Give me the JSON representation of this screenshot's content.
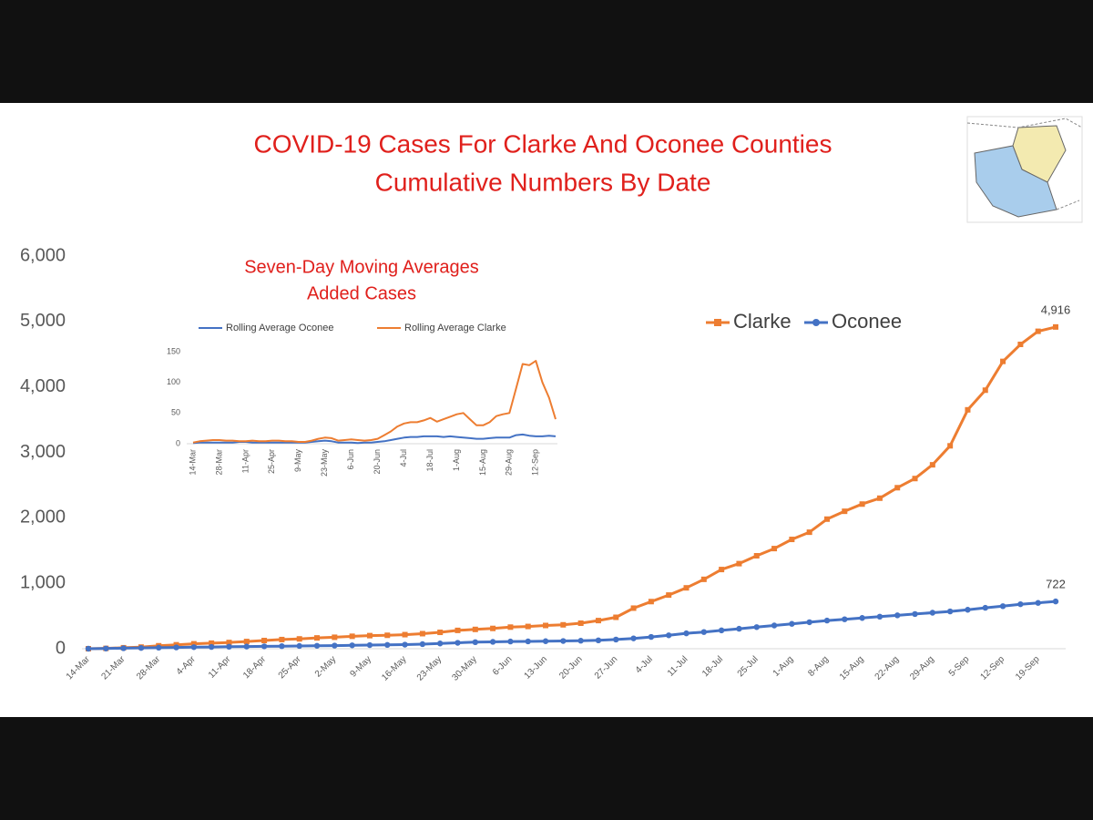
{
  "title": [
    "COVID-19 Cases For Clarke And Oconee Counties",
    "Cumulative Numbers By Date"
  ],
  "chart_data": [
    {
      "type": "line",
      "categories": [
        "14-Mar",
        null,
        "21-Mar",
        null,
        "28-Mar",
        null,
        "4-Apr",
        null,
        "11-Apr",
        null,
        "18-Apr",
        null,
        "25-Apr",
        null,
        "2-May",
        null,
        "9-May",
        null,
        "16-May",
        null,
        "23-May",
        null,
        "30-May",
        null,
        "6-Jun",
        null,
        "13-Jun",
        null,
        "20-Jun",
        null,
        "27-Jun",
        null,
        "4-Jul",
        null,
        "11-Jul",
        null,
        "18-Jul",
        null,
        "25-Jul",
        null,
        "1-Aug",
        null,
        "8-Aug",
        null,
        "15-Aug",
        null,
        "22-Aug",
        null,
        "29-Aug",
        null,
        "5-Sep",
        null,
        "12-Sep",
        null,
        "19-Sep",
        null
      ],
      "series": [
        {
          "name": "Clarke",
          "color": "#ed7d31",
          "marker": "square",
          "values": [
            0,
            5,
            15,
            25,
            45,
            60,
            75,
            85,
            95,
            110,
            125,
            140,
            150,
            165,
            175,
            190,
            200,
            205,
            215,
            230,
            250,
            280,
            295,
            310,
            330,
            340,
            355,
            365,
            390,
            430,
            480,
            620,
            720,
            820,
            930,
            1060,
            1210,
            1300,
            1420,
            1530,
            1670,
            1780,
            1980,
            2100,
            2210,
            2300,
            2460,
            2600,
            2810,
            3100,
            3650,
            3950,
            4390,
            4650,
            4850,
            4916
          ],
          "value_labels": [
            null,
            null,
            null,
            null,
            null,
            null,
            null,
            null,
            null,
            null,
            null,
            null,
            null,
            null,
            null,
            null,
            null,
            null,
            null,
            null,
            null,
            null,
            null,
            null,
            null,
            null,
            null,
            null,
            null,
            null,
            null,
            null,
            null,
            null,
            null,
            null,
            null,
            null,
            null,
            null,
            null,
            null,
            null,
            null,
            null,
            null,
            null,
            null,
            null,
            null,
            null,
            null,
            null,
            null,
            null,
            "4,916"
          ]
        },
        {
          "name": "Oconee",
          "color": "#4472c4",
          "marker": "circle",
          "values": [
            0,
            3,
            8,
            12,
            16,
            20,
            24,
            27,
            30,
            33,
            36,
            39,
            42,
            45,
            48,
            52,
            55,
            58,
            62,
            70,
            80,
            90,
            100,
            105,
            110,
            112,
            115,
            118,
            122,
            128,
            140,
            158,
            180,
            205,
            235,
            255,
            280,
            305,
            330,
            355,
            380,
            405,
            430,
            450,
            470,
            490,
            510,
            530,
            550,
            570,
            595,
            625,
            650,
            680,
            700,
            722
          ],
          "value_labels": [
            null,
            null,
            null,
            null,
            null,
            null,
            null,
            null,
            null,
            null,
            null,
            null,
            null,
            null,
            null,
            null,
            null,
            null,
            null,
            null,
            null,
            null,
            null,
            null,
            null,
            null,
            null,
            null,
            null,
            null,
            null,
            null,
            null,
            null,
            null,
            null,
            null,
            null,
            null,
            null,
            null,
            null,
            null,
            null,
            null,
            null,
            null,
            null,
            null,
            null,
            null,
            null,
            null,
            null,
            null,
            "722"
          ]
        }
      ],
      "ylim": [
        0,
        6000
      ],
      "yticks": [
        0,
        {
          "value": 1000,
          "label": "1,000"
        },
        {
          "value": 2000,
          "label": "2,000"
        },
        {
          "value": 3000,
          "label": "3,000"
        },
        {
          "value": 4000,
          "label": "4,000"
        },
        {
          "value": 5000,
          "label": "5,000"
        },
        {
          "value": 6000,
          "label": "6,000"
        }
      ],
      "grid": false,
      "legend": "top-right"
    },
    {
      "type": "line",
      "title": [
        "Seven-Day Moving Averages",
        "Added Cases"
      ],
      "categories": [
        "14-Mar",
        null,
        null,
        null,
        "28-Mar",
        null,
        null,
        null,
        "11-Apr",
        null,
        null,
        null,
        "25-Apr",
        null,
        null,
        null,
        "9-May",
        null,
        null,
        null,
        "23-May",
        null,
        null,
        null,
        "6-Jun",
        null,
        null,
        null,
        "20-Jun",
        null,
        null,
        null,
        "4-Jul",
        null,
        null,
        null,
        "18-Jul",
        null,
        null,
        null,
        "1-Aug",
        null,
        null,
        null,
        "15-Aug",
        null,
        null,
        null,
        "29-Aug",
        null,
        null,
        null,
        "12-Sep",
        null,
        null,
        null
      ],
      "series": [
        {
          "name": "Rolling Average Oconee",
          "color": "#4472c4",
          "values": [
            1,
            2,
            2,
            2,
            2,
            2,
            2,
            3,
            3,
            2,
            2,
            2,
            2,
            2,
            2,
            2,
            2,
            2,
            3,
            4,
            5,
            4,
            2,
            2,
            2,
            1,
            2,
            2,
            3,
            4,
            6,
            8,
            10,
            11,
            11,
            12,
            12,
            12,
            11,
            12,
            11,
            10,
            9,
            8,
            8,
            9,
            10,
            10,
            10,
            14,
            15,
            13,
            12,
            12,
            13,
            12
          ]
        },
        {
          "name": "Rolling Average Clarke",
          "color": "#ed7d31",
          "values": [
            2,
            4,
            5,
            6,
            6,
            5,
            5,
            4,
            4,
            5,
            4,
            4,
            5,
            5,
            4,
            4,
            3,
            3,
            5,
            8,
            10,
            9,
            5,
            6,
            7,
            6,
            5,
            6,
            8,
            14,
            20,
            28,
            33,
            35,
            35,
            38,
            42,
            36,
            40,
            44,
            48,
            50,
            40,
            30,
            30,
            35,
            45,
            48,
            50,
            90,
            130,
            128,
            135,
            100,
            75,
            40
          ]
        }
      ],
      "ylim": [
        0,
        150
      ],
      "yticks": [
        0,
        50,
        100,
        150
      ],
      "grid": false,
      "legend": "top"
    }
  ]
}
